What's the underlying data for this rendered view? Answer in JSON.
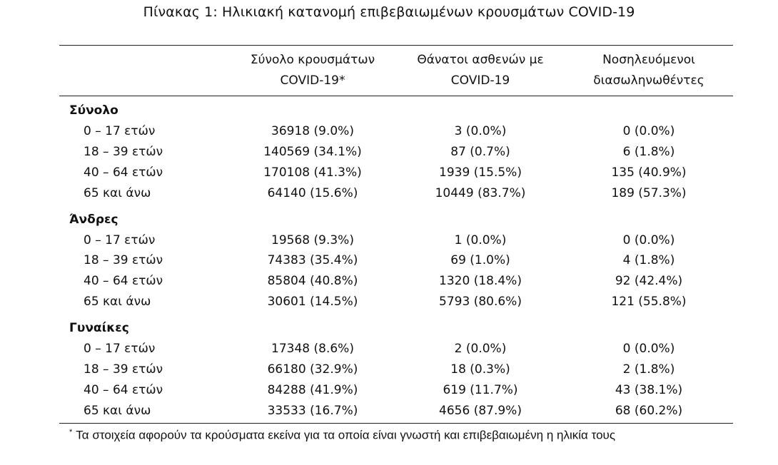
{
  "title": "Πίνακας 1: Ηλικιακή κατανομή επιβεβαιωμένων κρουσμάτων COVID-19",
  "headers": {
    "col1_line1": "Σύνολο κρουσμάτων",
    "col1_line2": "COVID-19*",
    "col2_line1": "Θάνατοι ασθενών με",
    "col2_line2": "COVID-19",
    "col3_line1": "Νοσηλευόμενοι",
    "col3_line2": "διασωληνωθέντες"
  },
  "sections": [
    {
      "label": "Σύνολο",
      "rows": [
        {
          "age": "0 – 17 ετών",
          "cases": "36918 (9.0%)",
          "deaths": "3 (0.0%)",
          "intubated": "0 (0.0%)"
        },
        {
          "age": "18 – 39 ετών",
          "cases": "140569 (34.1%)",
          "deaths": "87 (0.7%)",
          "intubated": "6 (1.8%)"
        },
        {
          "age": "40 – 64 ετών",
          "cases": "170108 (41.3%)",
          "deaths": "1939 (15.5%)",
          "intubated": "135 (40.9%)"
        },
        {
          "age": "65 και άνω",
          "cases": "64140 (15.6%)",
          "deaths": "10449 (83.7%)",
          "intubated": "189 (57.3%)"
        }
      ]
    },
    {
      "label": "Άνδρες",
      "rows": [
        {
          "age": "0 – 17 ετών",
          "cases": "19568 (9.3%)",
          "deaths": "1 (0.0%)",
          "intubated": "0 (0.0%)"
        },
        {
          "age": "18 – 39 ετών",
          "cases": "74383 (35.4%)",
          "deaths": "69 (1.0%)",
          "intubated": "4 (1.8%)"
        },
        {
          "age": "40 – 64 ετών",
          "cases": "85804 (40.8%)",
          "deaths": "1320 (18.4%)",
          "intubated": "92 (42.4%)"
        },
        {
          "age": "65 και άνω",
          "cases": "30601 (14.5%)",
          "deaths": "5793 (80.6%)",
          "intubated": "121 (55.8%)"
        }
      ]
    },
    {
      "label": "Γυναίκες",
      "rows": [
        {
          "age": "0 – 17 ετών",
          "cases": "17348 (8.6%)",
          "deaths": "2 (0.0%)",
          "intubated": "0 (0.0%)"
        },
        {
          "age": "18 – 39 ετών",
          "cases": "66180 (32.9%)",
          "deaths": "18 (0.3%)",
          "intubated": "2 (1.8%)"
        },
        {
          "age": "40 – 64 ετών",
          "cases": "84288 (41.9%)",
          "deaths": "619 (11.7%)",
          "intubated": "43 (38.1%)"
        },
        {
          "age": "65 και άνω",
          "cases": "33533 (16.7%)",
          "deaths": "4656 (87.9%)",
          "intubated": "68 (60.2%)"
        }
      ]
    }
  ],
  "footnote": {
    "marker": "*",
    "text": "Τα στοιχεία αφορούν τα κρούσματα εκείνα για τα οποία είναι γνωστή και επιβεβαιωμένη η ηλικία τους"
  }
}
